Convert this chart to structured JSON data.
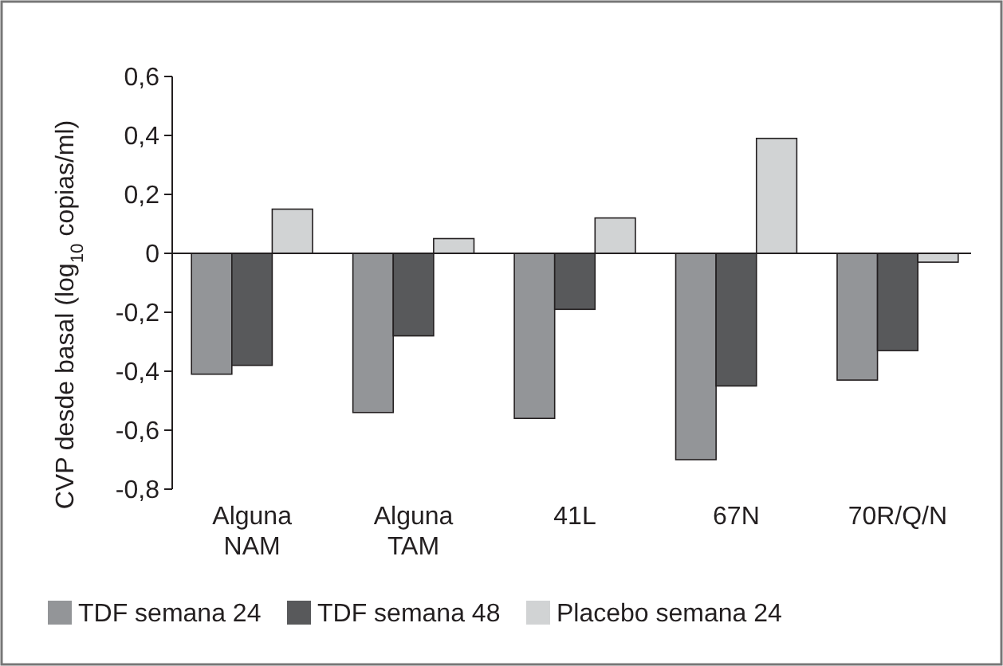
{
  "chart_data": {
    "type": "bar",
    "ylabel": "CVP desde basal (log$_{10}$ copias/ml)",
    "categories": [
      "Alguna\nNAM",
      "Alguna\nTAM",
      "41L",
      "67N",
      "70R/Q/N"
    ],
    "series": [
      {
        "name": "TDF semana 24",
        "color": "#939598",
        "values": [
          -0.41,
          -0.54,
          -0.56,
          -0.7,
          -0.43
        ]
      },
      {
        "name": "TDF semana 48",
        "color": "#58595b",
        "values": [
          -0.38,
          -0.28,
          -0.19,
          -0.45,
          -0.33
        ]
      },
      {
        "name": "Placebo semana 24",
        "color": "#d1d3d4",
        "values": [
          0.15,
          0.05,
          0.12,
          0.39,
          -0.03
        ]
      }
    ],
    "ylim": [
      -0.8,
      0.6
    ],
    "yticks": [
      {
        "value": -0.8,
        "label": "-0,8"
      },
      {
        "value": -0.6,
        "label": "-0,6"
      },
      {
        "value": -0.4,
        "label": "-0,4"
      },
      {
        "value": -0.2,
        "label": "-0,2"
      },
      0,
      {
        "value": 0.2,
        "label": "0,2"
      },
      {
        "value": 0.4,
        "label": "0,4"
      },
      {
        "value": 0.6,
        "label": "0,6"
      }
    ],
    "legend": "bottom"
  }
}
